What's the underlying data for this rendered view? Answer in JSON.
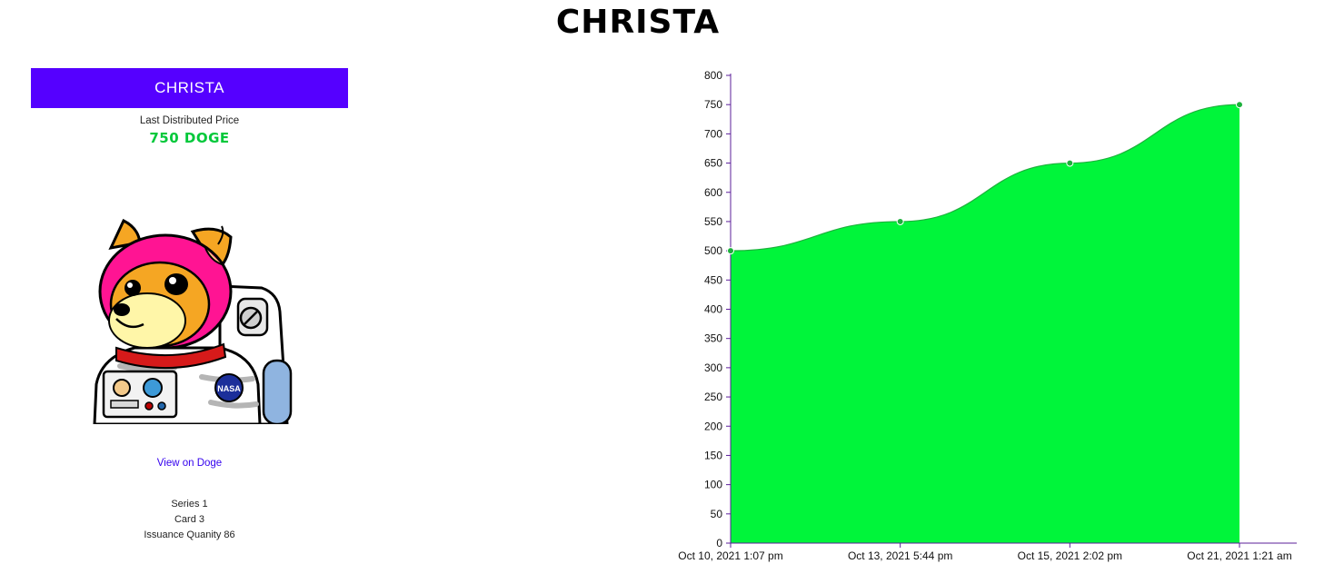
{
  "page": {
    "title": "CHRISTA"
  },
  "card": {
    "name": "CHRISTA",
    "price_label": "Last Distributed Price",
    "price_value": "750 DOGE",
    "link_label": "View on Doge",
    "series": "Series 1",
    "card_number": "Card 3",
    "issuance": "Issuance Quanity 86"
  },
  "colors": {
    "brand": "#5500ff",
    "price": "#00c83a",
    "area_fill": "#00f53a",
    "area_stroke": "#1db13c",
    "axis": "#5b1f9a"
  },
  "chart_data": {
    "type": "area",
    "title": "",
    "xlabel": "",
    "ylabel": "",
    "x": [
      "Oct 10, 2021 1:07 pm",
      "Oct 13, 2021 5:44 pm",
      "Oct 15, 2021 2:02 pm",
      "Oct 21, 2021 1:21 am"
    ],
    "values": [
      500,
      550,
      650,
      750
    ],
    "ylim": [
      0,
      800
    ],
    "yticks": [
      0,
      50,
      100,
      150,
      200,
      250,
      300,
      350,
      400,
      450,
      500,
      550,
      600,
      650,
      700,
      750,
      800
    ],
    "grid": false,
    "legend": "none"
  }
}
